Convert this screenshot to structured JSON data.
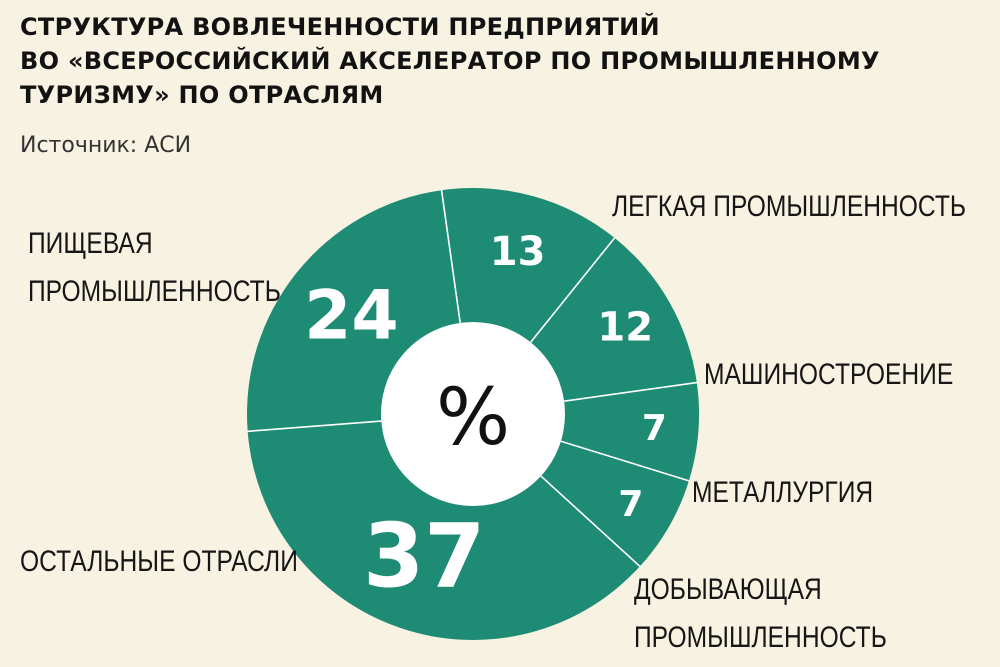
{
  "header": {
    "title_lines": [
      "СТРУКТУРА ВОВЛЕЧЕННОСТИ ПРЕДПРИЯТИЙ",
      "ВО «ВСЕРОССИЙСКИЙ АКСЕЛЕРАТОР ПО ПРОМЫШЛЕННОМУ",
      "ТУРИЗМУ» ПО ОТРАСЛЯМ"
    ],
    "source": "Источник: АСИ"
  },
  "colors": {
    "background": "#f8f2e2",
    "slice": "#1e8c74",
    "separator": "#ffffff",
    "center": "#ffffff"
  },
  "chart_data": {
    "type": "pie",
    "center_label": "%",
    "slices": [
      {
        "label_lines": [
          "ЛЕГКАЯ ПРОМЫШЛЕННОСТЬ"
        ],
        "value": 13
      },
      {
        "label_lines": [
          "МАШИНОСТРОЕНИЕ"
        ],
        "value": 12
      },
      {
        "label_lines": [
          "МЕТАЛЛУРГИЯ"
        ],
        "value": 7
      },
      {
        "label_lines": [
          "ДОБЫВАЮЩАЯ",
          "ПРОМЫШЛЕННОСТЬ"
        ],
        "value": 7
      },
      {
        "label_lines": [
          "ОСТАЛЬНЫЕ ОТРАСЛИ"
        ],
        "value": 37
      },
      {
        "label_lines": [
          "ПИЩЕВАЯ",
          "ПРОМЫШЛЕННОСТЬ"
        ],
        "value": 24
      }
    ]
  }
}
